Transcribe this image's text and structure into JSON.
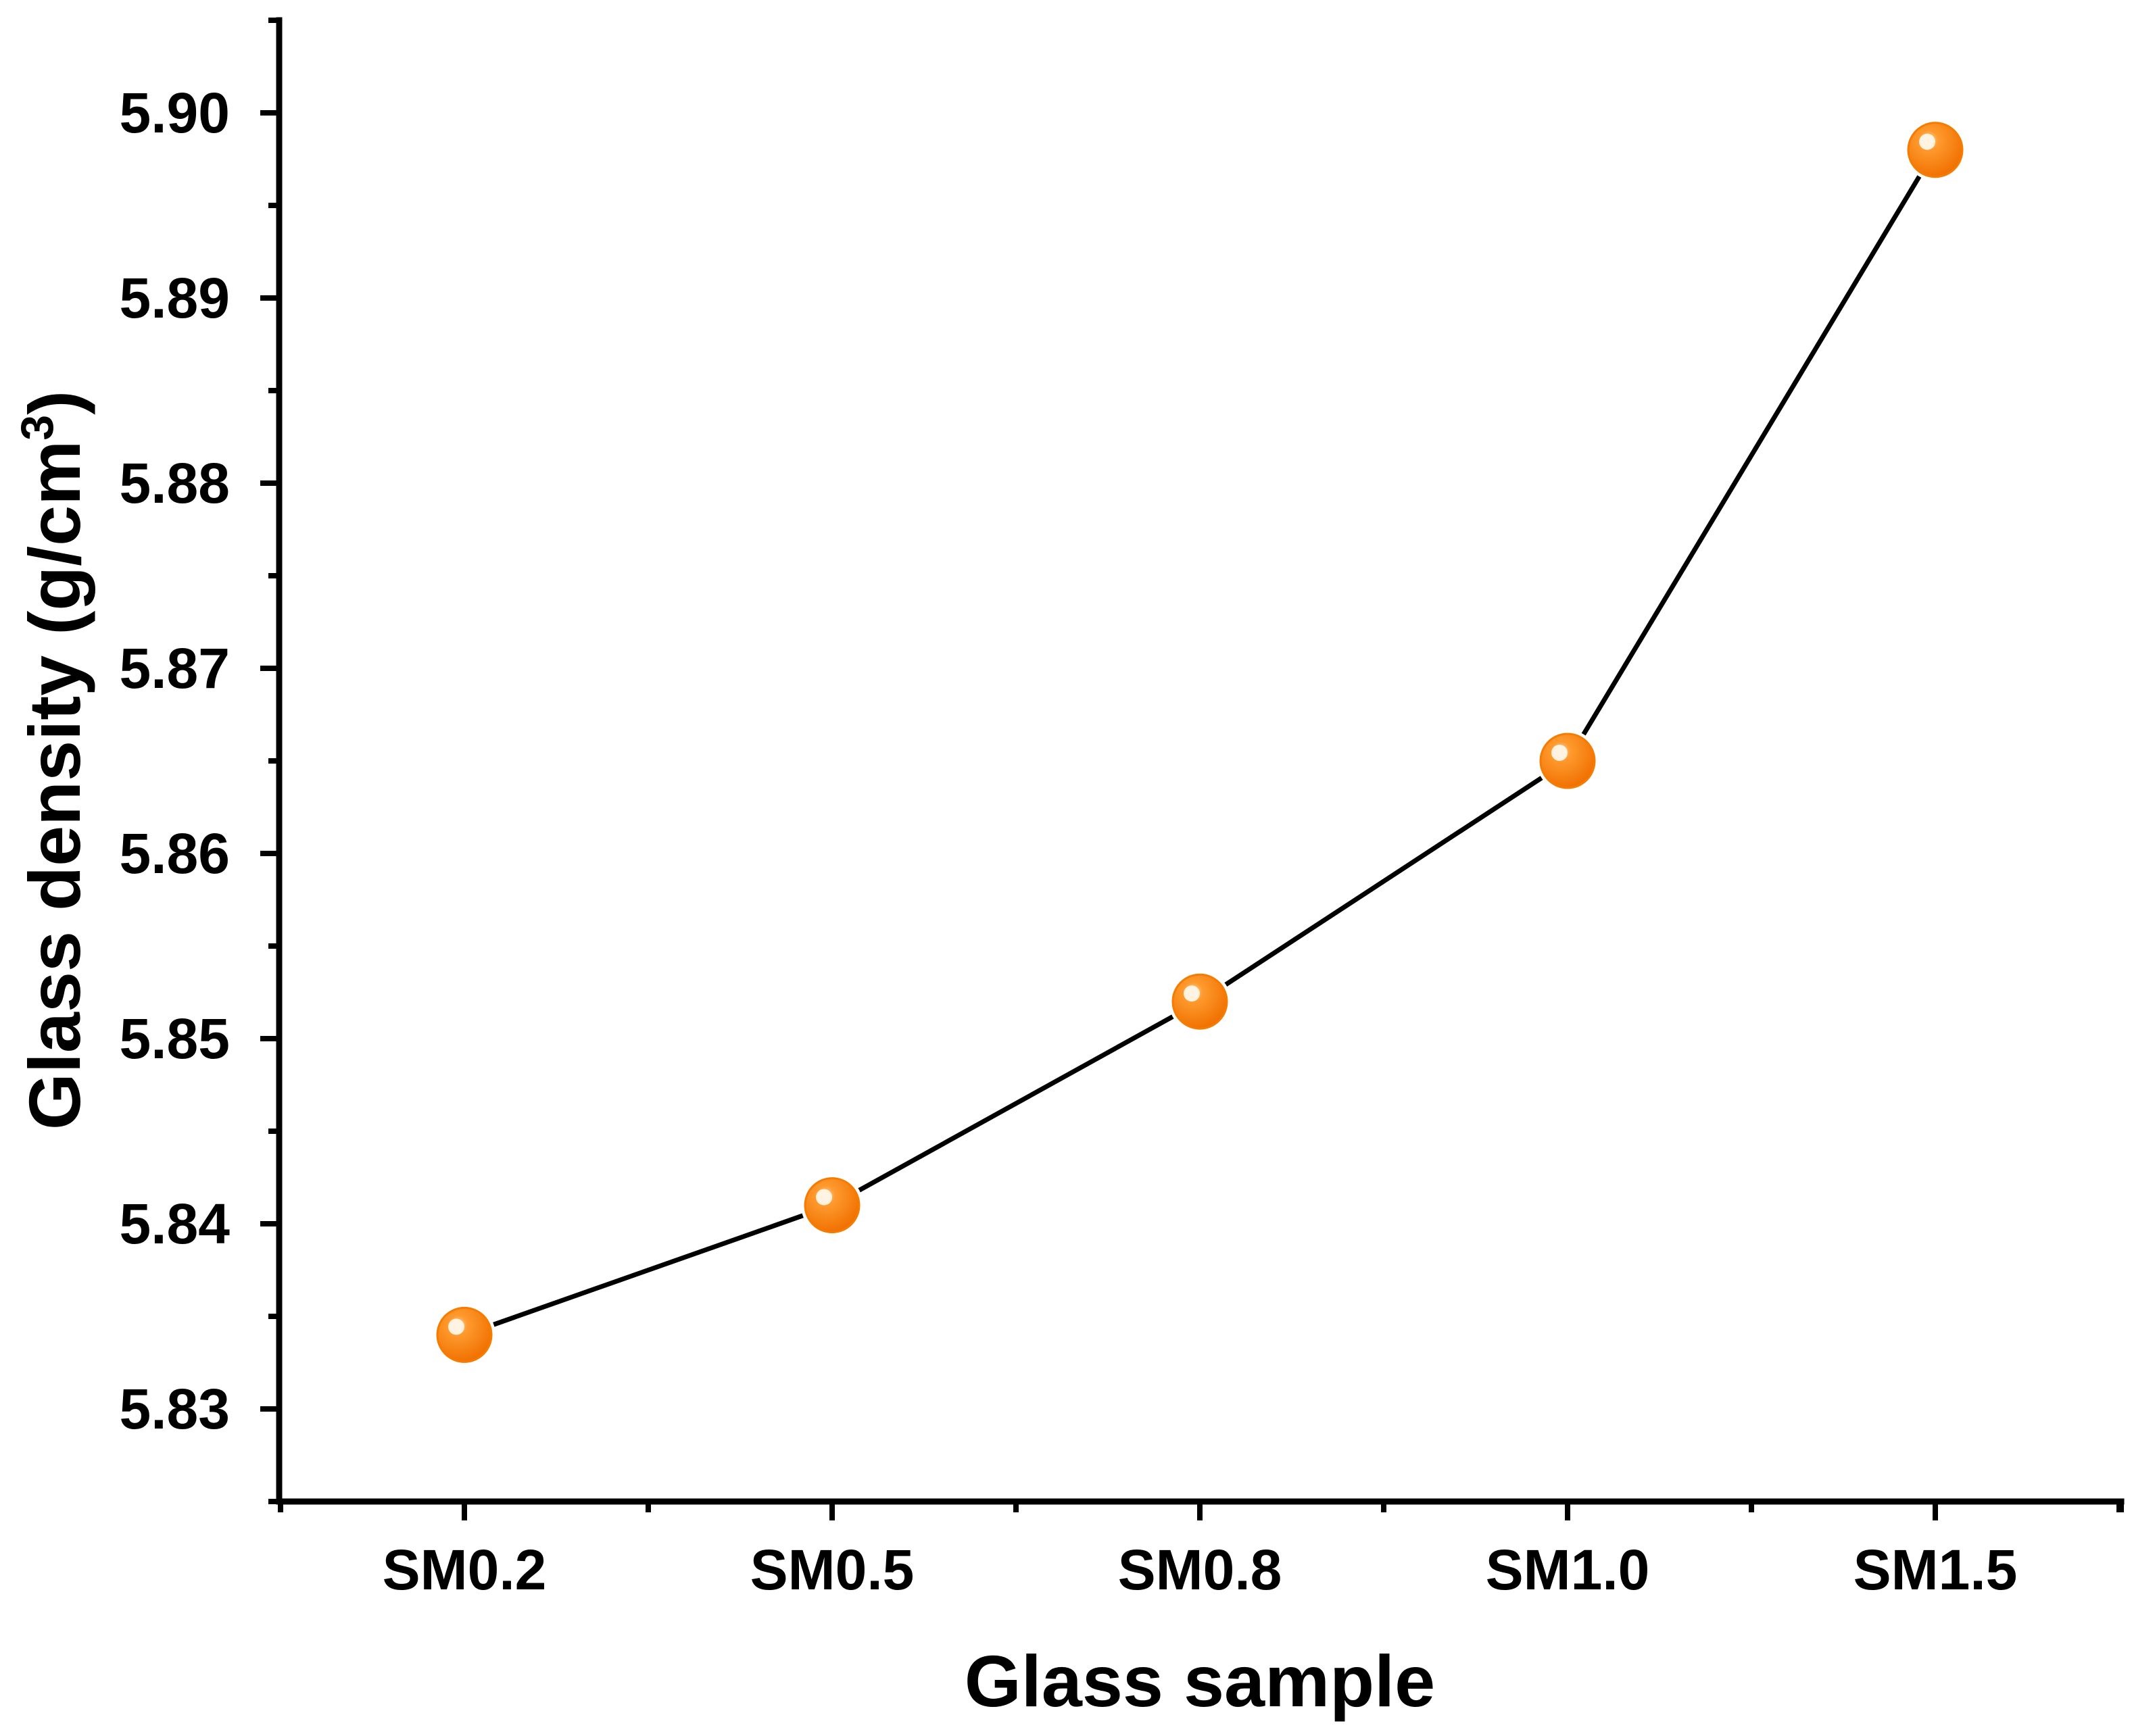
{
  "chart_data": {
    "type": "line",
    "title": "",
    "xlabel": "Glass sample",
    "ylabel": "Glass density (g/cm",
    "ylabel_superscript": "3",
    "ylabel_close": ")",
    "categories": [
      "SM0.2",
      "SM0.5",
      "SM0.8",
      "SM1.0",
      "SM1.5"
    ],
    "values": [
      5.834,
      5.841,
      5.852,
      5.865,
      5.898
    ],
    "yticks": [
      "5.83",
      "5.84",
      "5.85",
      "5.86",
      "5.87",
      "5.88",
      "5.89",
      "5.90"
    ],
    "ytick_values": [
      5.83,
      5.84,
      5.85,
      5.86,
      5.87,
      5.88,
      5.89,
      5.9
    ],
    "ylim": [
      5.825,
      5.905
    ],
    "grid": false,
    "legend": "none",
    "marker_color": "#f57c00",
    "line_color": "#000000"
  }
}
